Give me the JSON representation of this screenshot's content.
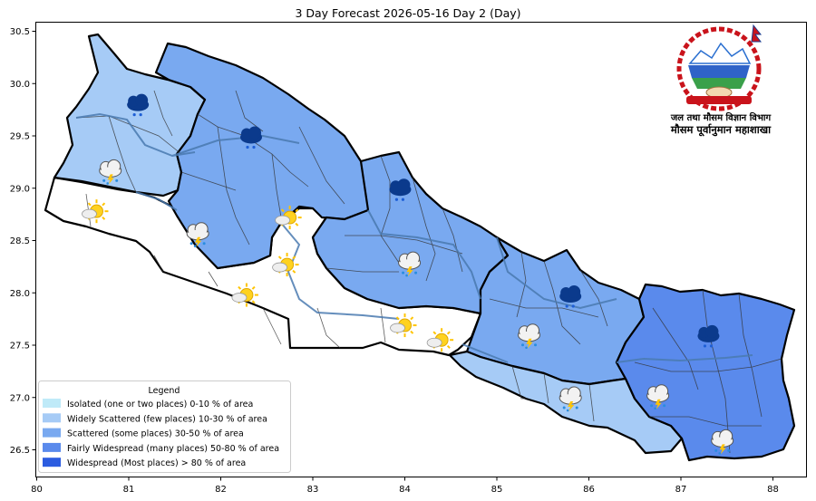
{
  "title": "3 Day Forecast 2026-05-16 Day 2 (Day)",
  "organization": {
    "line1": "जल तथा मौसम विज्ञान विभाग",
    "line2": "मौसम पूर्वानुमान महाशाखा"
  },
  "axes": {
    "x_ticks": [
      "80",
      "81",
      "82",
      "83",
      "84",
      "85",
      "86",
      "87",
      "88"
    ],
    "y_ticks": [
      "30.5",
      "30.0",
      "29.5",
      "29.0",
      "28.5",
      "28.0",
      "27.5",
      "27.0",
      "26.5"
    ]
  },
  "legend": {
    "title": "Legend",
    "items": [
      {
        "label": "Isolated (one or two places)  0-10 % of area",
        "color": "#bfeaf8"
      },
      {
        "label": "Widely Scattered (few places)  10-30 % of area",
        "color": "#a6cbf6"
      },
      {
        "label": "Scattered (some places)  30-50 % of area",
        "color": "#79a9f0"
      },
      {
        "label": "Fairly Widespread (many places)  50-80 % of area",
        "color": "#5a8aec"
      },
      {
        "label": "Widespread (Most places) > 80 % of area",
        "color": "#2b5ce0"
      }
    ]
  },
  "forecast_icons": [
    {
      "lon": 81.1,
      "lat": 29.78,
      "icon": "heavy-rain-cloud-icon"
    },
    {
      "lon": 82.33,
      "lat": 29.47,
      "icon": "heavy-rain-cloud-icon"
    },
    {
      "lon": 80.8,
      "lat": 29.15,
      "icon": "thunder-rain-cloud-icon"
    },
    {
      "lon": 80.65,
      "lat": 28.78,
      "icon": "sun-cloud-icon"
    },
    {
      "lon": 81.75,
      "lat": 28.55,
      "icon": "thunder-rain-cloud-icon"
    },
    {
      "lon": 82.75,
      "lat": 28.72,
      "icon": "sun-cloud-icon"
    },
    {
      "lon": 82.72,
      "lat": 28.27,
      "icon": "sun-cloud-icon"
    },
    {
      "lon": 82.28,
      "lat": 27.98,
      "icon": "sun-cloud-icon"
    },
    {
      "lon": 83.95,
      "lat": 28.97,
      "icon": "heavy-rain-cloud-icon"
    },
    {
      "lon": 84.05,
      "lat": 28.27,
      "icon": "thunder-rain-cloud-icon"
    },
    {
      "lon": 84.0,
      "lat": 27.69,
      "icon": "sun-cloud-icon"
    },
    {
      "lon": 84.4,
      "lat": 27.55,
      "icon": "sun-cloud-icon"
    },
    {
      "lon": 85.8,
      "lat": 27.95,
      "icon": "heavy-rain-cloud-icon"
    },
    {
      "lon": 85.35,
      "lat": 27.58,
      "icon": "thunder-rain-cloud-icon"
    },
    {
      "lon": 85.8,
      "lat": 26.98,
      "icon": "thunder-rain-cloud-icon"
    },
    {
      "lon": 86.75,
      "lat": 27.0,
      "icon": "thunder-rain-cloud-icon"
    },
    {
      "lon": 87.3,
      "lat": 27.57,
      "icon": "heavy-rain-cloud-icon"
    },
    {
      "lon": 87.45,
      "lat": 26.57,
      "icon": "thunder-rain-cloud-icon"
    }
  ]
}
